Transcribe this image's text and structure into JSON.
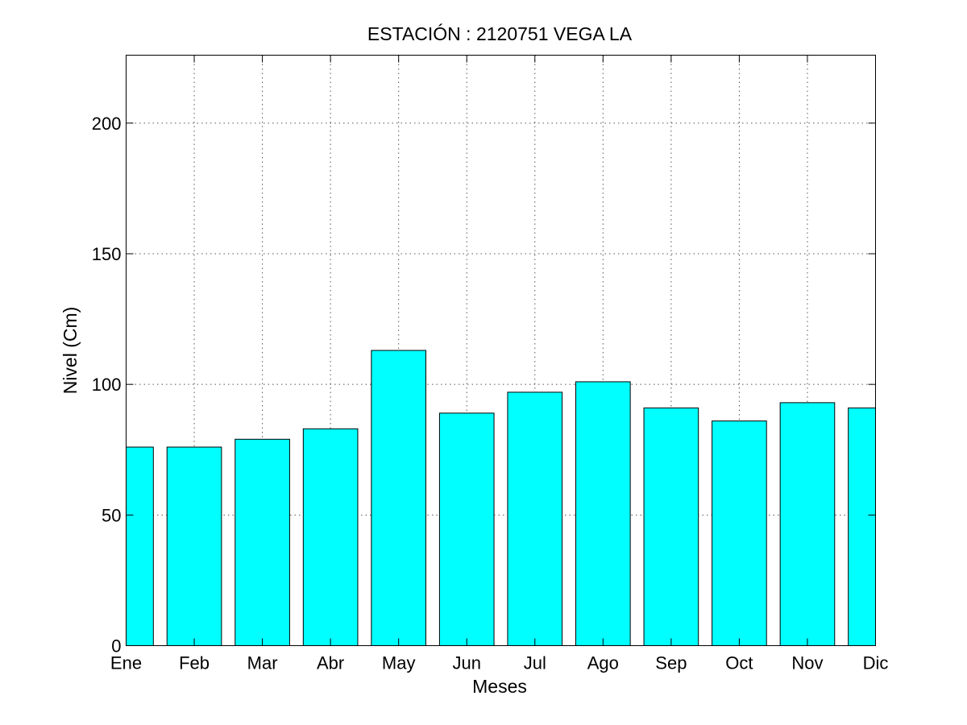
{
  "chart_data": {
    "type": "bar",
    "title": "ESTACIÓN :  2120751  VEGA LA",
    "xlabel": "Meses",
    "ylabel": "Nivel (Cm)",
    "categories": [
      "Ene",
      "Feb",
      "Mar",
      "Abr",
      "May",
      "Jun",
      "Jul",
      "Ago",
      "Sep",
      "Oct",
      "Nov",
      "Dic"
    ],
    "values": [
      76,
      76,
      79,
      83,
      113,
      89,
      97,
      101,
      91,
      86,
      93,
      91
    ],
    "ylim": [
      0,
      226
    ],
    "yticks": [
      0,
      50,
      100,
      150,
      200
    ],
    "grid": true,
    "bar_color": "#00ffff"
  }
}
